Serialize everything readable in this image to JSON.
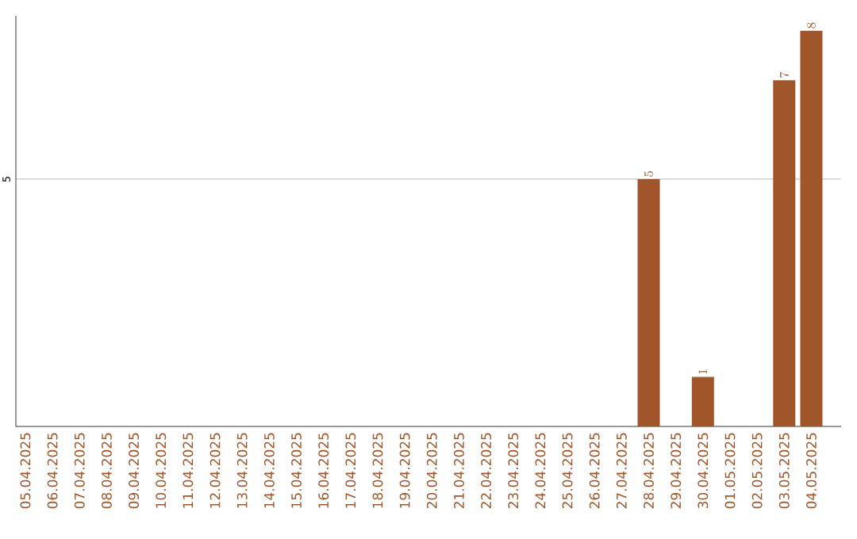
{
  "chart_data": {
    "type": "bar",
    "categories": [
      "05.04.2025",
      "06.04.2025",
      "07.04.2025",
      "08.04.2025",
      "09.04.2025",
      "10.04.2025",
      "11.04.2025",
      "12.04.2025",
      "13.04.2025",
      "14.04.2025",
      "15.04.2025",
      "16.04.2025",
      "17.04.2025",
      "18.04.2025",
      "19.04.2025",
      "20.04.2025",
      "21.04.2025",
      "22.04.2025",
      "23.04.2025",
      "24.04.2025",
      "25.04.2025",
      "26.04.2025",
      "27.04.2025",
      "28.04.2025",
      "29.04.2025",
      "30.04.2025",
      "01.05.2025",
      "02.05.2025",
      "03.05.2025",
      "04.05.2025"
    ],
    "values": [
      null,
      null,
      null,
      null,
      null,
      null,
      null,
      null,
      null,
      null,
      null,
      null,
      null,
      null,
      null,
      null,
      null,
      null,
      null,
      null,
      null,
      null,
      null,
      5,
      null,
      1,
      null,
      null,
      7,
      8
    ],
    "color": "#a0562a",
    "ylim": [
      0,
      8.3
    ],
    "yticks": [
      5
    ],
    "grid": "y",
    "data_labels": true
  }
}
